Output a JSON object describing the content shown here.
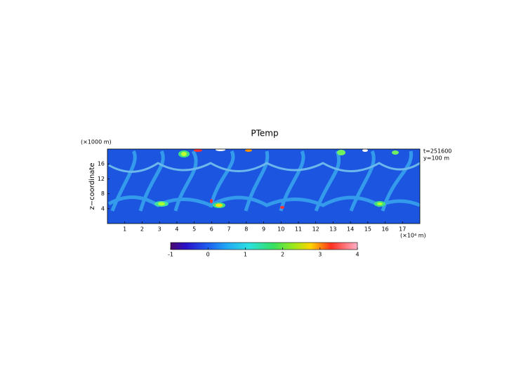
{
  "chart_data": {
    "type": "heatmap",
    "title": "PTemp",
    "x_label": "(×10⁴ m)",
    "y_label": "z−coordinate",
    "y_unit": "(×1000 m)",
    "annotations": [
      "t=251600",
      "y=100 m"
    ],
    "xlim": [
      0,
      18
    ],
    "xticks": [
      1,
      2,
      3,
      4,
      5,
      6,
      7,
      8,
      9,
      10,
      11,
      12,
      13,
      14,
      15,
      16,
      17
    ],
    "ylim": [
      0,
      20
    ],
    "yticks": [
      4,
      8,
      12,
      16
    ],
    "colorbar": {
      "lim": [
        -1,
        4
      ],
      "ticks": [
        -1,
        0,
        1,
        2,
        3,
        4
      ]
    }
  }
}
